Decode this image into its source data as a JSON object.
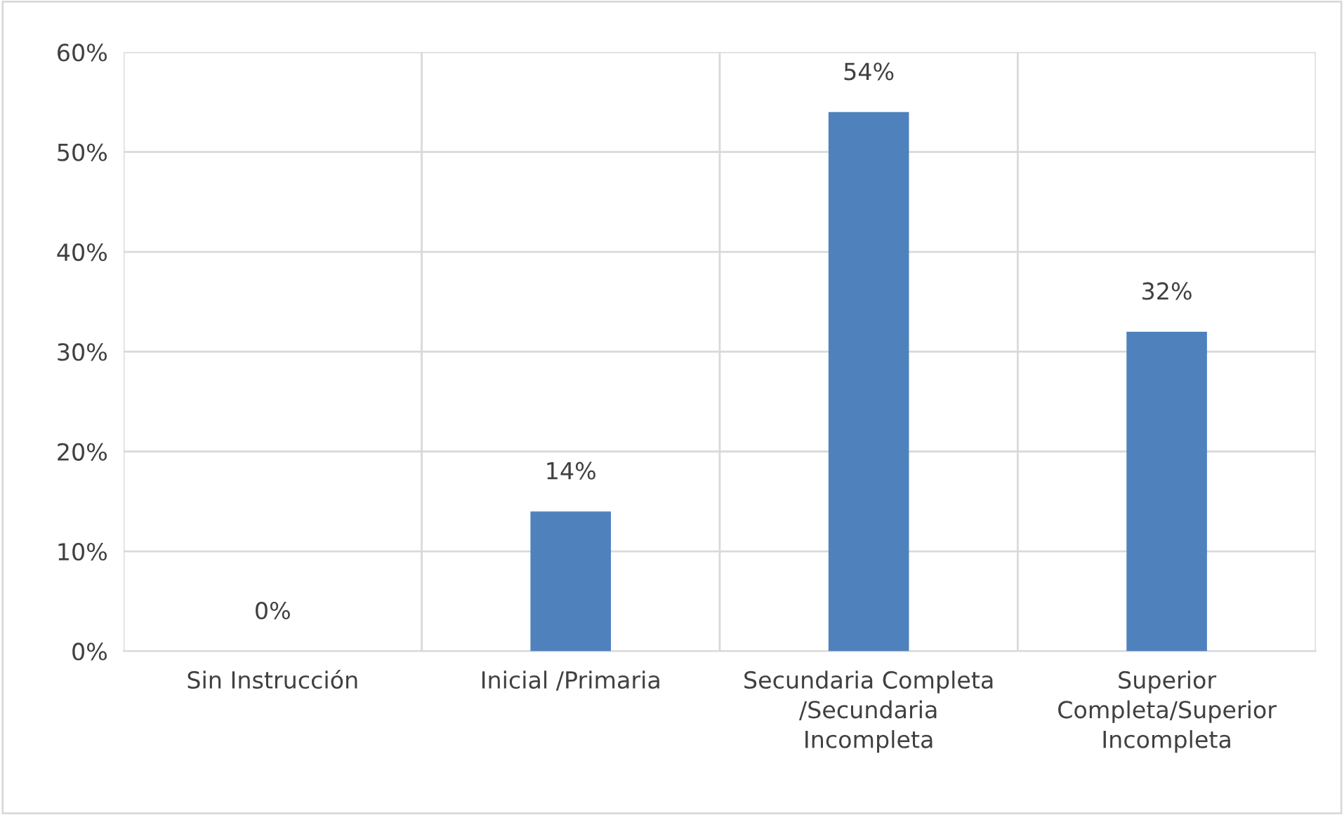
{
  "chart_data": {
    "type": "bar",
    "categories": [
      "Sin Instrucción",
      "Inicial /Primaria",
      "Secundaria Completa\n/Secundaria\nIncompleta",
      "Superior\nCompleta/Superior\nIncompleta"
    ],
    "values": [
      0,
      14,
      54,
      32
    ],
    "value_labels": [
      "0%",
      "14%",
      "54%",
      "32%"
    ],
    "color": "#4f81bd",
    "ylim": [
      0,
      60
    ],
    "yticks": [
      {
        "value": 0,
        "label": "0%"
      },
      {
        "value": 10,
        "label": "10%"
      },
      {
        "value": 20,
        "label": "20%"
      },
      {
        "value": 30,
        "label": "30%"
      },
      {
        "value": 40,
        "label": "40%"
      },
      {
        "value": 50,
        "label": "50%"
      },
      {
        "value": 60,
        "label": "60%"
      }
    ],
    "grid": true
  }
}
